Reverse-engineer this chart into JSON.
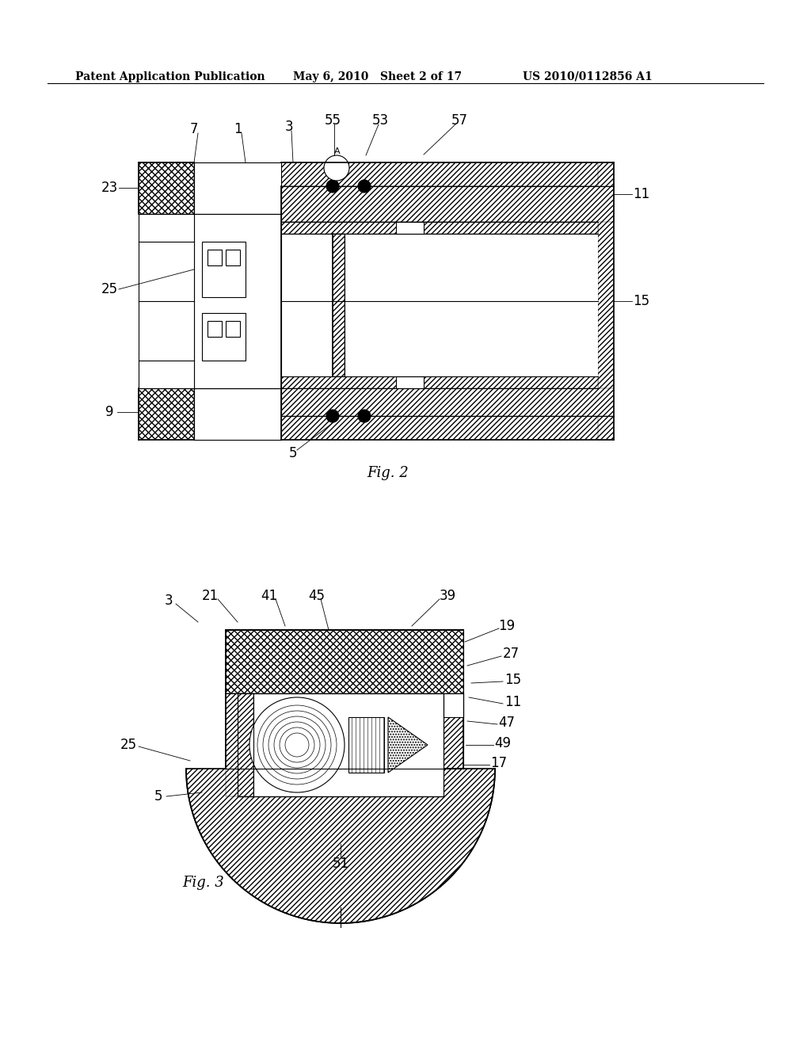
{
  "background_color": "#ffffff",
  "header_left": "Patent Application Publication",
  "header_center": "May 6, 2010   Sheet 2 of 17",
  "header_right": "US 2010/0112856 A1",
  "fig2_label": "Fig. 2",
  "fig3_label": "Fig. 3",
  "header_fontsize": 10,
  "label_fontsize": 12,
  "fig_label_fontsize": 13
}
